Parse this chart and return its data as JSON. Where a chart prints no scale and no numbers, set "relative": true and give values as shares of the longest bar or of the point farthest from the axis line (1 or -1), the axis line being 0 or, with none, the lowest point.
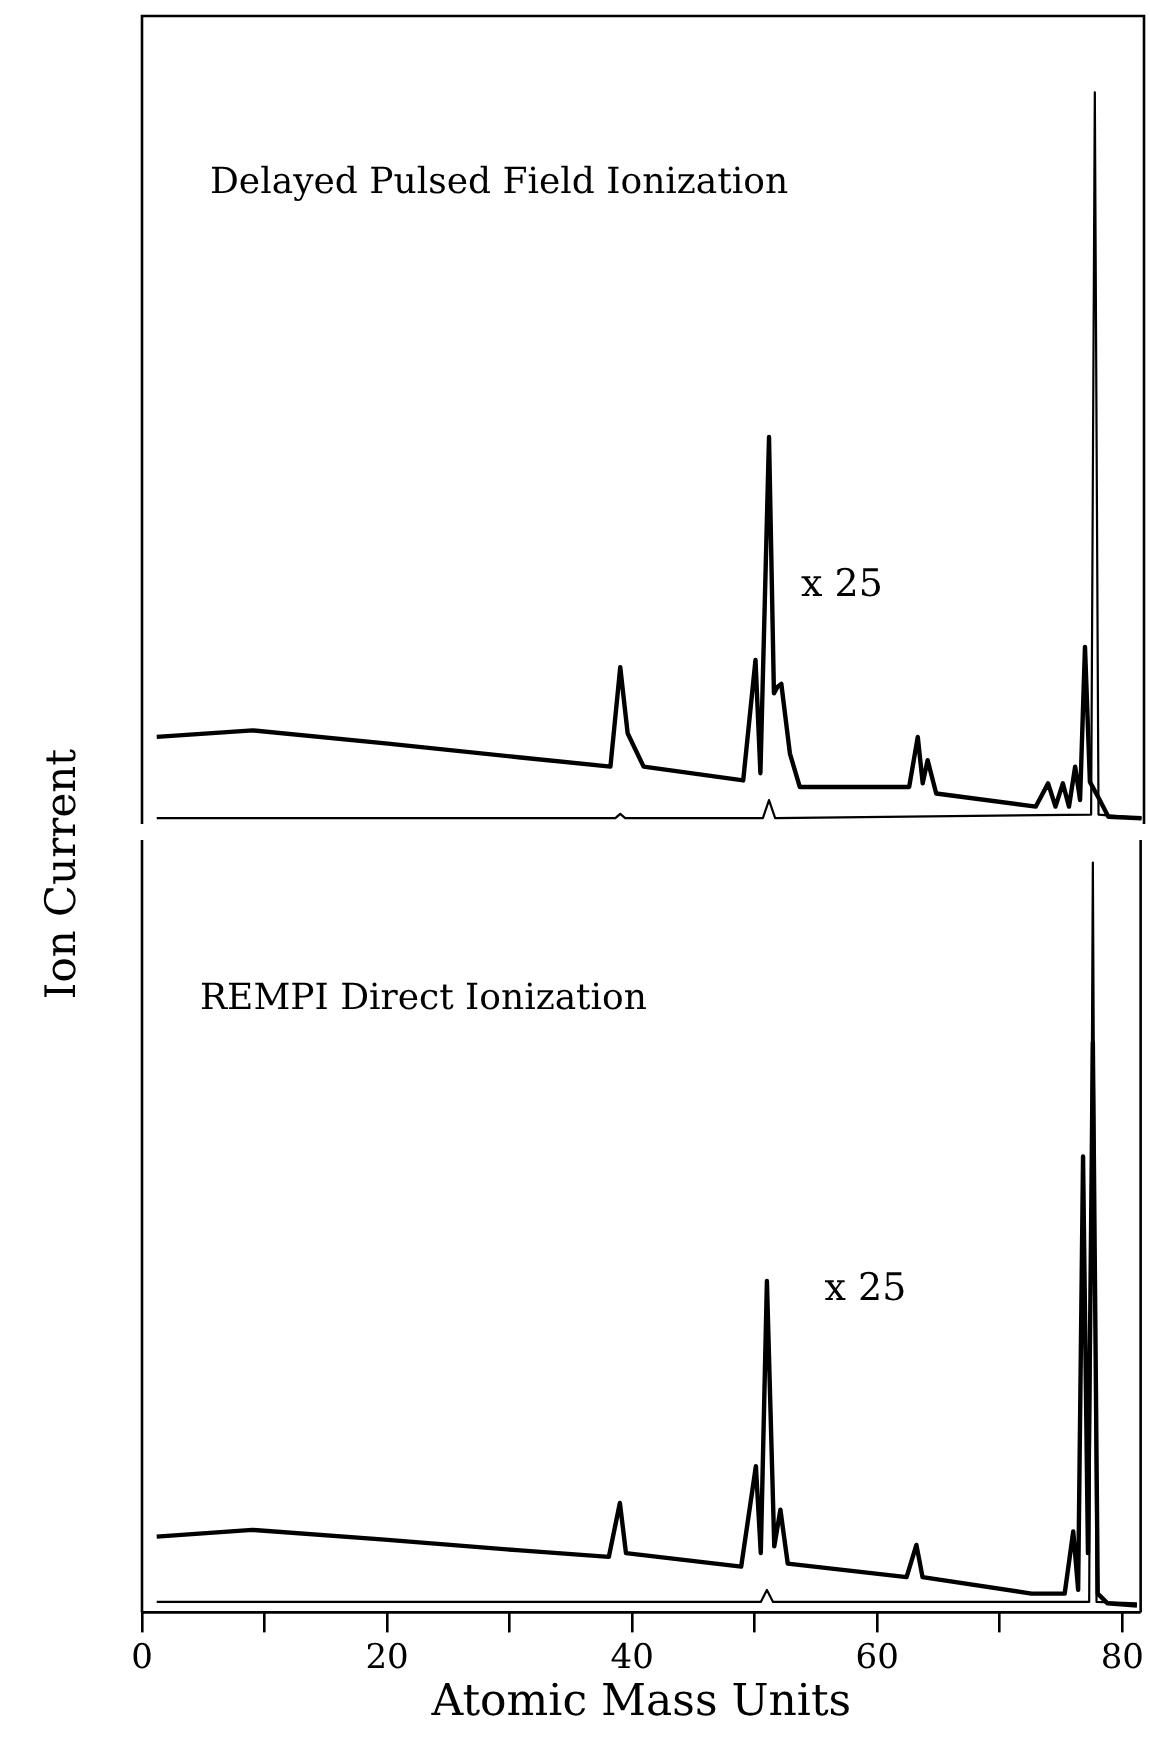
{
  "chart_data": [
    {
      "type": "line",
      "title": "Delayed Pulsed Field Ionization",
      "ylabel": "Ion Current",
      "relative": true,
      "xlim": [
        0,
        81.5
      ],
      "tick_labels": false,
      "annotations": [
        "x 25"
      ],
      "series": [
        {
          "color": "#000000",
          "x": [
            1.2,
            9.0,
            19.8,
            30.6,
            38.1,
            38.9,
            39.5,
            40.8,
            48.9,
            49.9,
            50.3,
            51.0,
            51.4,
            51.7,
            52.0,
            52.7,
            53.5,
            62.4,
            63.1,
            63.5,
            63.9,
            64.6,
            72.7,
            73.7,
            74.3,
            74.9,
            75.4,
            75.9,
            76.3,
            76.7,
            77.1,
            77.9,
            78.6,
            81.3
          ],
          "values": [
            0.112,
            0.121,
            0.103,
            0.084,
            0.071,
            0.208,
            0.117,
            0.071,
            0.052,
            0.218,
            0.062,
            0.525,
            0.172,
            0.181,
            0.185,
            0.089,
            0.043,
            0.043,
            0.112,
            0.048,
            0.08,
            0.034,
            0.016,
            0.048,
            0.016,
            0.048,
            0.016,
            0.071,
            0.025,
            0.236,
            0.05,
            0.025,
            0.002,
            0.0
          ]
        },
        {
          "color": "#000000",
          "x": [
            1.2,
            38.5,
            38.9,
            39.3,
            50.5,
            51.0,
            51.5,
            77.2,
            77.5,
            77.8,
            81.3
          ],
          "values": [
            0.0,
            0.0,
            0.006,
            0.0,
            0.0,
            0.025,
            0.0,
            0.005,
            1.0,
            0.005,
            0.0
          ]
        }
      ]
    },
    {
      "type": "line",
      "title": "REMPI Direct Ionization",
      "xlabel": "Atomic Mass Units",
      "relative": true,
      "xlim": [
        0,
        81.5
      ],
      "tick_labels": "x",
      "xticks": [
        0,
        {
          "value": 10,
          "label": null
        },
        20,
        {
          "value": 30,
          "label": null
        },
        40,
        {
          "value": 50,
          "label": null
        },
        60,
        {
          "value": 70,
          "label": null
        },
        80
      ],
      "annotations": [
        "x 25"
      ],
      "series": [
        {
          "color": "#000000",
          "x": [
            1.2,
            9.0,
            19.8,
            30.6,
            38.1,
            39.0,
            39.5,
            48.9,
            50.1,
            50.5,
            51.0,
            51.6,
            52.1,
            52.7,
            62.4,
            63.2,
            63.7,
            72.6,
            75.3,
            76.0,
            76.4,
            76.8,
            77.2,
            77.6,
            78.0,
            78.8,
            81.2
          ],
          "values": [
            0.101,
            0.11,
            0.097,
            0.083,
            0.074,
            0.146,
            0.079,
            0.061,
            0.195,
            0.079,
            0.442,
            0.088,
            0.137,
            0.065,
            0.047,
            0.09,
            0.047,
            0.025,
            0.025,
            0.108,
            0.03,
            0.608,
            0.079,
            0.76,
            0.025,
            0.012,
            0.009
          ]
        },
        {
          "color": "#000000",
          "x": [
            1.2,
            50.5,
            51.0,
            51.5,
            77.3,
            77.6,
            77.9,
            81.2
          ],
          "values": [
            0.014,
            0.014,
            0.03,
            0.014,
            0.014,
            1.0,
            0.014,
            0.012
          ]
        }
      ]
    }
  ]
}
